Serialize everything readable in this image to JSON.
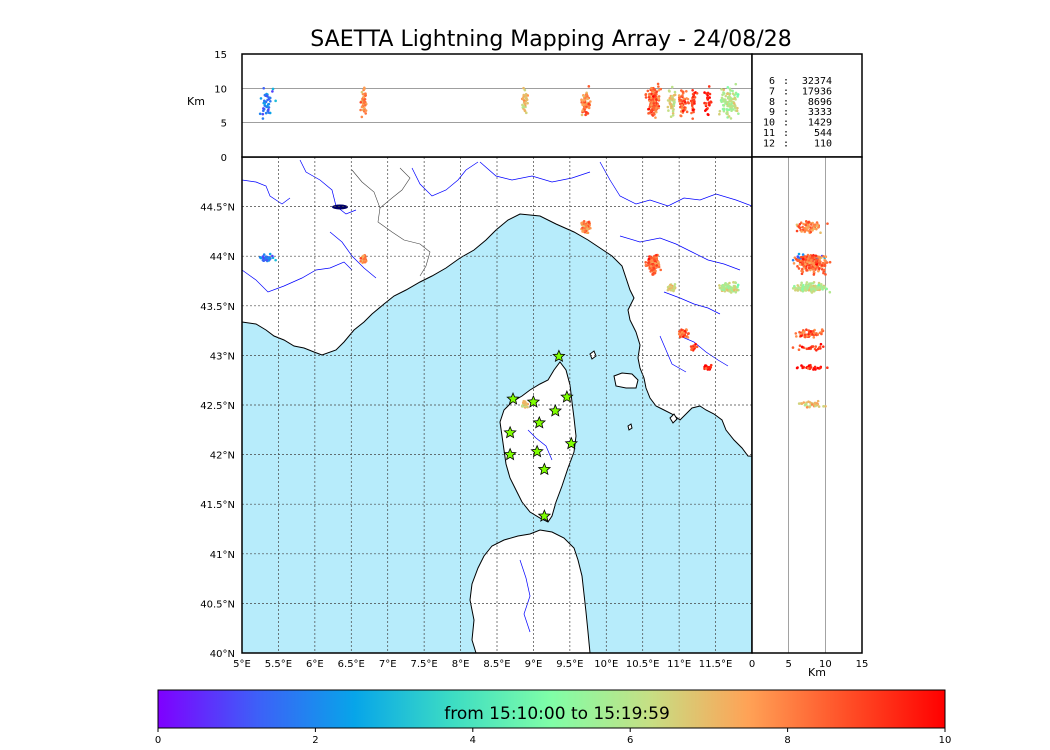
{
  "title": "SAETTA Lightning Mapping Array - 24/08/28",
  "colors": {
    "sea": "#b7ecfb",
    "land": "#ffffff",
    "river": "#0000ff",
    "border": "#444444",
    "station": "#7fff00",
    "highlight_count": "#ff0000"
  },
  "map": {
    "lon_range": [
      5,
      12
    ],
    "lat_range": [
      40,
      45
    ],
    "lon_ticks": [
      {
        "v": 5,
        "label": "5°E"
      },
      {
        "v": 5.5,
        "label": "5.5°E"
      },
      {
        "v": 6,
        "label": "6°E"
      },
      {
        "v": 6.5,
        "label": "6.5°E"
      },
      {
        "v": 7,
        "label": "7°E"
      },
      {
        "v": 7.5,
        "label": "7.5°E"
      },
      {
        "v": 8,
        "label": "8°E"
      },
      {
        "v": 8.5,
        "label": "8.5°E"
      },
      {
        "v": 9,
        "label": "9°E"
      },
      {
        "v": 9.5,
        "label": "9.5°E"
      },
      {
        "v": 10,
        "label": "10°E"
      },
      {
        "v": 10.5,
        "label": "10.5°E"
      },
      {
        "v": 11,
        "label": "11°E"
      },
      {
        "v": 11.5,
        "label": "11.5°E"
      }
    ],
    "lat_ticks": [
      {
        "v": 40,
        "label": "40°N"
      },
      {
        "v": 40.5,
        "label": "40.5°N"
      },
      {
        "v": 41,
        "label": "41°N"
      },
      {
        "v": 41.5,
        "label": "41.5°N"
      },
      {
        "v": 42,
        "label": "42°N"
      },
      {
        "v": 42.5,
        "label": "42.5°N"
      },
      {
        "v": 43,
        "label": "43°N"
      },
      {
        "v": 43.5,
        "label": "43.5°N"
      },
      {
        "v": 44,
        "label": "44°N"
      },
      {
        "v": 44.5,
        "label": "44.5°N"
      }
    ],
    "stations": [
      {
        "lon": 9.35,
        "lat": 42.99
      },
      {
        "lon": 8.72,
        "lat": 42.56
      },
      {
        "lon": 9.0,
        "lat": 42.53
      },
      {
        "lon": 9.46,
        "lat": 42.58
      },
      {
        "lon": 9.3,
        "lat": 42.44
      },
      {
        "lon": 9.08,
        "lat": 42.32
      },
      {
        "lon": 8.68,
        "lat": 42.22
      },
      {
        "lon": 9.52,
        "lat": 42.11
      },
      {
        "lon": 8.68,
        "lat": 42.0
      },
      {
        "lon": 9.05,
        "lat": 42.03
      },
      {
        "lon": 9.15,
        "lat": 41.85
      },
      {
        "lon": 9.15,
        "lat": 41.38
      }
    ]
  },
  "altitude_axis": {
    "unit": "Km",
    "range": [
      0,
      15
    ],
    "ticks": [
      0,
      5,
      10,
      15
    ]
  },
  "counts": [
    {
      "label": "6",
      "value": "32374",
      "highlight": false
    },
    {
      "label": "7",
      "value": "17936",
      "highlight": true
    },
    {
      "label": "8",
      "value": "8696",
      "highlight": false
    },
    {
      "label": "9",
      "value": "3333",
      "highlight": false
    },
    {
      "label": "10",
      "value": "1429",
      "highlight": false
    },
    {
      "label": "11",
      "value": "544",
      "highlight": false
    },
    {
      "label": "12",
      "value": "110",
      "highlight": false
    }
  ],
  "colorbar": {
    "caption": "from 15:10:00 to 15:19:59",
    "range": [
      0,
      10
    ],
    "ticks": [
      0,
      2,
      4,
      6,
      8,
      10
    ],
    "stops": [
      "#7f00ff",
      "#3e5ff8",
      "#07a5e9",
      "#3dddc3",
      "#80fea7",
      "#c6df84",
      "#ffa256",
      "#ff4f27",
      "#ff0000"
    ]
  },
  "lightning_clusters": [
    {
      "lon": 5.35,
      "lat": 43.98,
      "rlon": 0.14,
      "rlat": 0.05,
      "t": 2,
      "n": 40
    },
    {
      "lon": 6.67,
      "lat": 43.97,
      "rlon": 0.06,
      "rlat": 0.05,
      "t": 8,
      "n": 40
    },
    {
      "lon": 9.72,
      "lat": 44.3,
      "rlon": 0.08,
      "rlat": 0.09,
      "t": 8,
      "n": 60
    },
    {
      "lon": 10.65,
      "lat": 43.92,
      "rlon": 0.12,
      "rlat": 0.14,
      "t": 8.5,
      "n": 140
    },
    {
      "lon": 10.9,
      "lat": 43.68,
      "rlon": 0.07,
      "rlat": 0.05,
      "t": 6.5,
      "n": 40
    },
    {
      "lon": 11.7,
      "lat": 43.68,
      "rlon": 0.2,
      "rlat": 0.07,
      "t": 6,
      "n": 90
    },
    {
      "lon": 11.05,
      "lat": 43.22,
      "rlon": 0.1,
      "rlat": 0.06,
      "t": 8.5,
      "n": 50
    },
    {
      "lon": 11.2,
      "lat": 43.08,
      "rlon": 0.06,
      "rlat": 0.04,
      "t": 9,
      "n": 25
    },
    {
      "lon": 11.4,
      "lat": 42.88,
      "rlon": 0.08,
      "rlat": 0.03,
      "t": 9.5,
      "n": 25
    },
    {
      "lon": 8.88,
      "lat": 42.5,
      "rlon": 0.05,
      "rlat": 0.05,
      "t": 7,
      "n": 30
    }
  ]
}
